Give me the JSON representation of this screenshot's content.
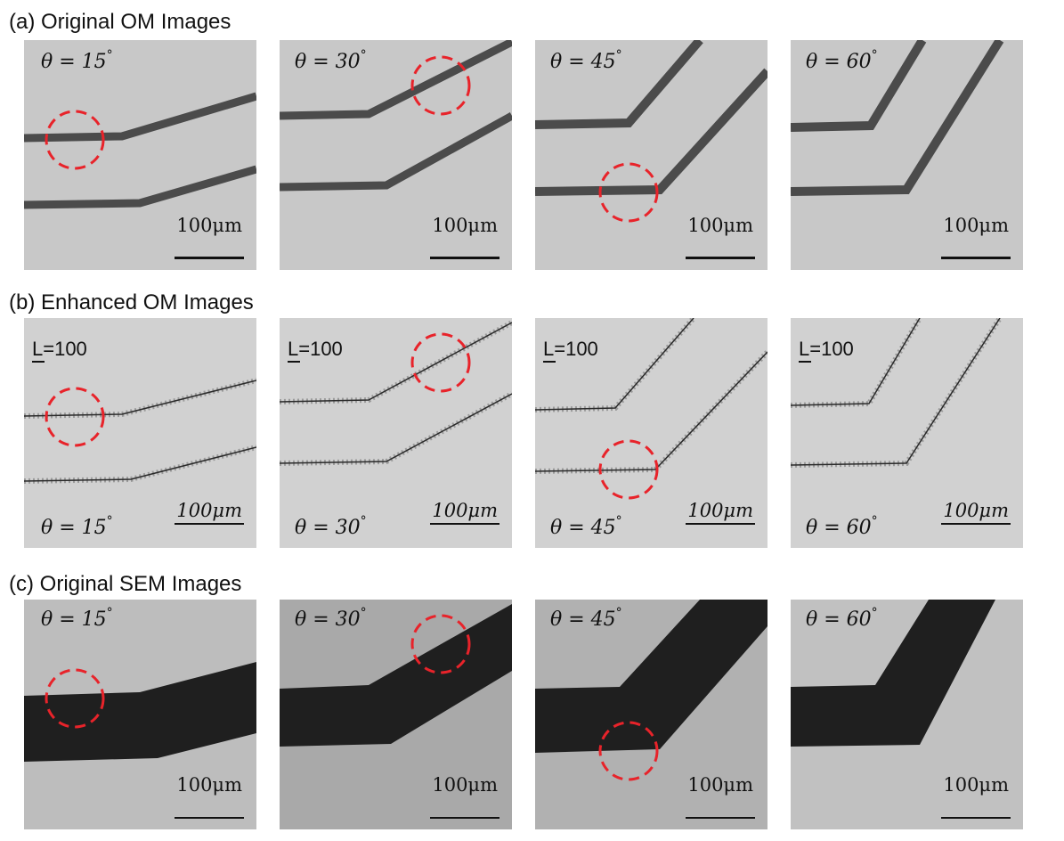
{
  "rows": [
    {
      "label": "(a) Original OM Images",
      "scale": "100μm",
      "angles": [
        "15",
        "30",
        "45",
        "60"
      ]
    },
    {
      "label": "(b) Enhanced OM Images",
      "scale": "100μm",
      "lscale": "L=100",
      "angles": [
        "15",
        "30",
        "45",
        "60"
      ]
    },
    {
      "label": "(c) Original SEM Images",
      "scale": "100μm",
      "angles": [
        "15",
        "30",
        "45",
        "60"
      ]
    }
  ],
  "theta_prefix": "θ = ",
  "degree_symbol": "°",
  "colors": {
    "highlight_circle": "#e8232a",
    "om_background": "#c9c9c9",
    "om_trace": "#4a4a4a",
    "sem_background": "#b7b7b7",
    "sem_trace": "#1f1f1f"
  }
}
